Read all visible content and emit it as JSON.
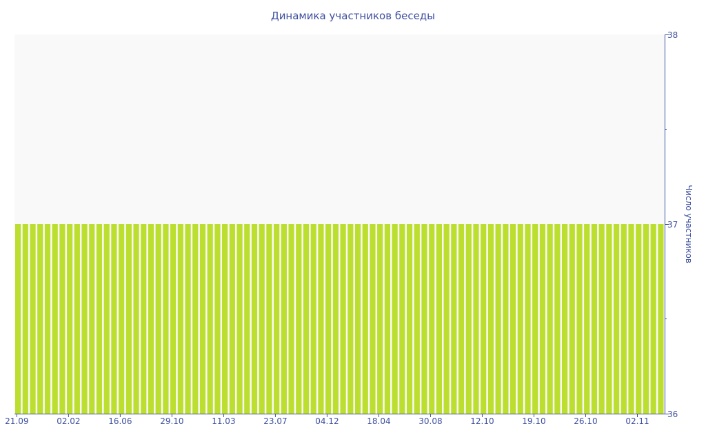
{
  "chart_data": {
    "type": "bar",
    "title": "Динамика участников беседы",
    "ylabel": "Число участников",
    "xlabel": "",
    "ylim": [
      36,
      38
    ],
    "yticks": [
      "36",
      "37",
      "38"
    ],
    "y_axis_position": "right",
    "grid": false,
    "legend": "none",
    "x_tick_labels": [
      "21.09",
      "02.02",
      "16.06",
      "29.10",
      "11.03",
      "23.07",
      "04.12",
      "18.04",
      "30.08",
      "12.10",
      "19.10",
      "26.10",
      "02.11"
    ],
    "x_tick_every_n_bars": 7,
    "values": [
      37,
      37,
      37,
      37,
      37,
      37,
      37,
      37,
      37,
      37,
      37,
      37,
      37,
      37,
      37,
      37,
      37,
      37,
      37,
      37,
      37,
      37,
      37,
      37,
      37,
      37,
      37,
      37,
      37,
      37,
      37,
      37,
      37,
      37,
      37,
      37,
      37,
      37,
      37,
      37,
      37,
      37,
      37,
      37,
      37,
      37,
      37,
      37,
      37,
      37,
      37,
      37,
      37,
      37,
      37,
      37,
      37,
      37,
      37,
      37,
      37,
      37,
      37,
      37,
      37,
      37,
      37,
      37,
      37,
      37,
      37,
      37,
      37,
      37,
      37,
      37,
      37,
      37,
      37,
      37,
      37,
      37,
      37,
      37,
      37,
      37,
      37,
      37
    ],
    "colors": {
      "bar": "#bcdf2f",
      "axis": "#3d4f9f",
      "plot_background": "#f9f9f9"
    }
  }
}
